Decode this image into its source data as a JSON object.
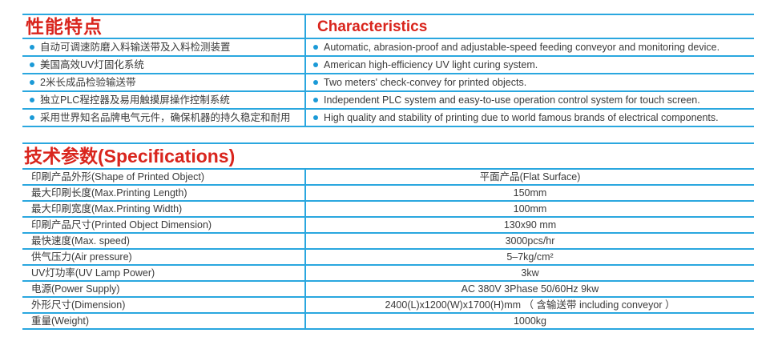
{
  "features_table": {
    "header_cn": "性能特点",
    "header_en": "Characteristics",
    "rows": [
      {
        "cn": "自动可调速防磨入料输送带及入料检测装置",
        "en": "Automatic, abrasion-proof and adjustable-speed feeding conveyor and monitoring device."
      },
      {
        "cn": "美国高效UV灯固化系统",
        "en": "American high-efficiency UV light curing system."
      },
      {
        "cn": "2米长成品检验输送带",
        "en": "Two meters' check-convey for printed objects."
      },
      {
        "cn": "独立PLC程控器及易用触摸屏操作控制系统",
        "en": "Independent PLC system and easy-to-use operation control system for touch screen."
      },
      {
        "cn": "采用世界知名品牌电气元件，确保机器的持久稳定和耐用",
        "en": "High quality and stability of printing due to world famous brands of electrical components."
      }
    ]
  },
  "specs_table": {
    "title": "技术参数(Specifications)",
    "rows": [
      {
        "label": "印刷产品外形(Shape of Printed Object)",
        "value": "平面产品(Flat Surface)"
      },
      {
        "label": "最大印刷长度(Max.Printing Length)",
        "value": "150mm"
      },
      {
        "label": "最大印刷宽度(Max.Printing Width)",
        "value": "100mm"
      },
      {
        "label": "印刷产品尺寸(Printed Object Dimension)",
        "value": "130x90 mm"
      },
      {
        "label": "最快速度(Max. speed)",
        "value": "3000pcs/hr"
      },
      {
        "label": "供气压力(Air pressure)",
        "value": "5–7kg/cm²"
      },
      {
        "label": "UV灯功率(UV Lamp Power)",
        "value": "3kw"
      },
      {
        "label": "电源(Power Supply)",
        "value": "AC 380V 3Phase 50/60Hz 9kw"
      },
      {
        "label": "外形尺寸(Dimension)",
        "value": "2400(L)x1200(W)x1700(H)mm （ 含输送带 including conveyor ）"
      },
      {
        "label": "重量(Weight)",
        "value": "1000kg"
      }
    ]
  },
  "colors": {
    "accent_blue": "#2AA7DF",
    "heading_red": "#D9251D",
    "bullet_blue": "#1B9AD7",
    "text": "#3A3A3A"
  }
}
